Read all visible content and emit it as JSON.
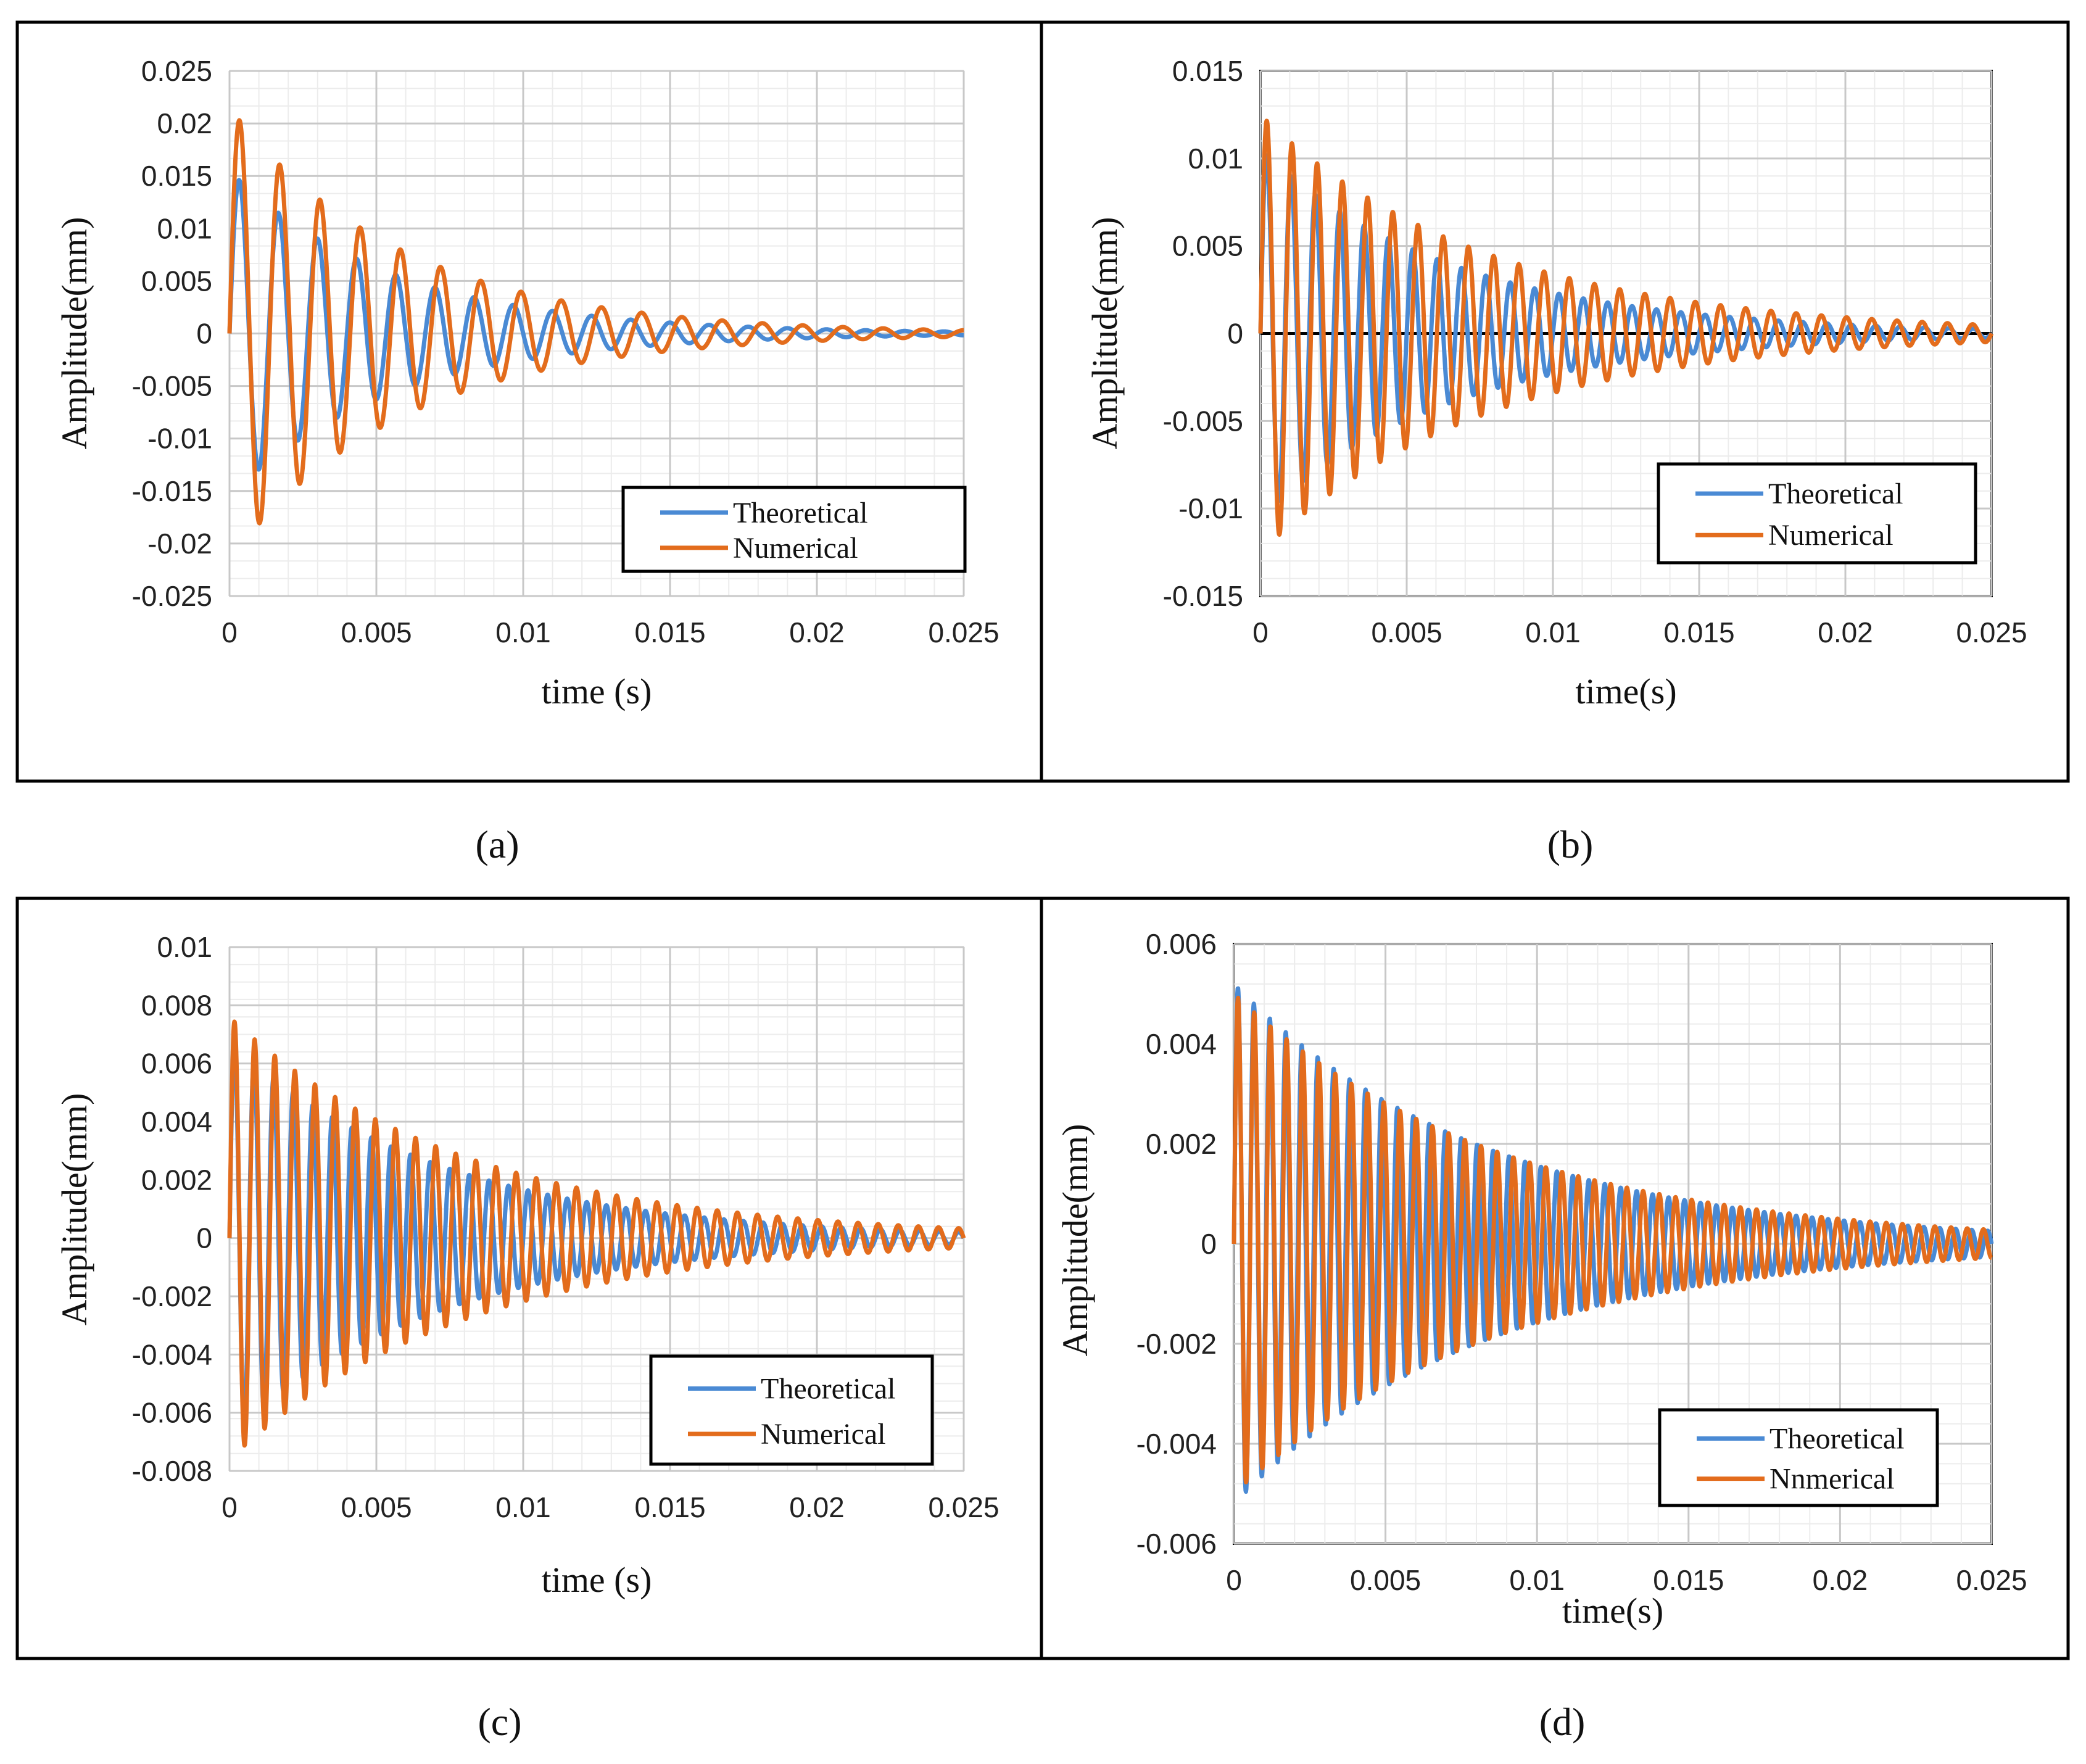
{
  "figure": {
    "captions": [
      "(a)",
      "(b)",
      "(c)",
      "(d)"
    ]
  },
  "chart_data": [
    {
      "type": "line",
      "panel": "(a)",
      "xlabel": "time (s)",
      "ylabel": "Amplitude(mm)",
      "xlim": [
        0,
        0.025
      ],
      "ylim": [
        -0.025,
        0.025
      ],
      "xticks": [
        0,
        0.005,
        0.01,
        0.015,
        0.02,
        0.025
      ],
      "xtick_labels": [
        "0",
        "0.005",
        "0.01",
        "0.015",
        "0.02",
        "0.025"
      ],
      "yticks": [
        0.025,
        0.02,
        0.015,
        0.01,
        0.005,
        0,
        -0.005,
        -0.01,
        -0.015,
        -0.02,
        -0.025
      ],
      "ytick_labels": [
        "0.025",
        "0.02",
        "0.015",
        "0.01",
        "0.005",
        "0",
        "-0.005",
        "-0.01",
        "-0.015",
        "-0.02",
        "-0.025"
      ],
      "legend_position": "bottom-right",
      "series": [
        {
          "name": "Theoretical",
          "color": "#4a8ad4",
          "amplitude": 0.0155,
          "frequency_hz": 750,
          "decay_per_s": 180
        },
        {
          "name": "Numerical",
          "color": "#e36c1c",
          "amplitude": 0.0215,
          "frequency_hz": 730,
          "decay_per_s": 170
        }
      ]
    },
    {
      "type": "line",
      "panel": "(b)",
      "xlabel": "time(s)",
      "ylabel": "Amplitude(mm)",
      "xlim": [
        0,
        0.025
      ],
      "ylim": [
        -0.015,
        0.015
      ],
      "xticks": [
        0,
        0.005,
        0.01,
        0.015,
        0.02,
        0.025
      ],
      "xtick_labels": [
        "0",
        "0.005",
        "0.01",
        "0.015",
        "0.02",
        "0.025"
      ],
      "yticks": [
        0.015,
        0.01,
        0.005,
        0,
        -0.005,
        -0.01,
        -0.015
      ],
      "ytick_labels": [
        "0.015",
        "0.01",
        "0.005",
        "0",
        "-0.005",
        "-0.01",
        "-0.015"
      ],
      "legend_position": "bottom-right",
      "series": [
        {
          "name": "Theoretical",
          "color": "#4a8ad4",
          "amplitude": 0.0105,
          "frequency_hz": 1200,
          "decay_per_s": 150
        },
        {
          "name": "Numerical",
          "color": "#e36c1c",
          "amplitude": 0.0125,
          "frequency_hz": 1160,
          "decay_per_s": 130
        }
      ]
    },
    {
      "type": "line",
      "panel": "(c)",
      "xlabel": "time (s)",
      "ylabel": "Amplitude(mm)",
      "xlim": [
        0,
        0.025
      ],
      "ylim": [
        -0.008,
        0.01
      ],
      "xticks": [
        0,
        0.005,
        0.01,
        0.015,
        0.02,
        0.025
      ],
      "xtick_labels": [
        "0",
        "0.005",
        "0.01",
        "0.015",
        "0.02",
        "0.025"
      ],
      "yticks": [
        0.01,
        0.008,
        0.006,
        0.004,
        0.002,
        0,
        -0.002,
        -0.004,
        -0.006,
        -0.008
      ],
      "ytick_labels": [
        "0.01",
        "0.008",
        "0.006",
        "0.004",
        "0.002",
        "0",
        "-0.002",
        "-0.004",
        "-0.006",
        "-0.008"
      ],
      "legend_position": "bottom-right",
      "series": [
        {
          "name": "Theoretical",
          "color": "#4a8ad4",
          "amplitude": 0.0068,
          "frequency_hz": 1500,
          "decay_per_s": 140
        },
        {
          "name": "Numerical",
          "color": "#e36c1c",
          "amplitude": 0.0076,
          "frequency_hz": 1460,
          "decay_per_s": 125
        }
      ]
    },
    {
      "type": "line",
      "panel": "(d)",
      "xlabel": "time(s)",
      "ylabel": "Amplitude(mm)",
      "xlim": [
        0,
        0.025
      ],
      "ylim": [
        -0.006,
        0.006
      ],
      "xticks": [
        0,
        0.005,
        0.01,
        0.015,
        0.02,
        0.025
      ],
      "xtick_labels": [
        "0",
        "0.005",
        "0.01",
        "0.015",
        "0.02",
        "0.025"
      ],
      "yticks": [
        0.006,
        0.004,
        0.002,
        0,
        -0.002,
        -0.004,
        -0.006
      ],
      "ytick_labels": [
        "0.006",
        "0.004",
        "0.002",
        "0",
        "-0.002",
        "-0.004",
        "-0.006"
      ],
      "legend_position": "bottom-right",
      "series": [
        {
          "name": "Theoretical",
          "color": "#4a8ad4",
          "amplitude": 0.0052,
          "frequency_hz": 1900,
          "decay_per_s": 120
        },
        {
          "name": "Nnmerical",
          "color": "#e36c1c",
          "amplitude": 0.005,
          "frequency_hz": 1870,
          "decay_per_s": 115
        }
      ]
    }
  ]
}
